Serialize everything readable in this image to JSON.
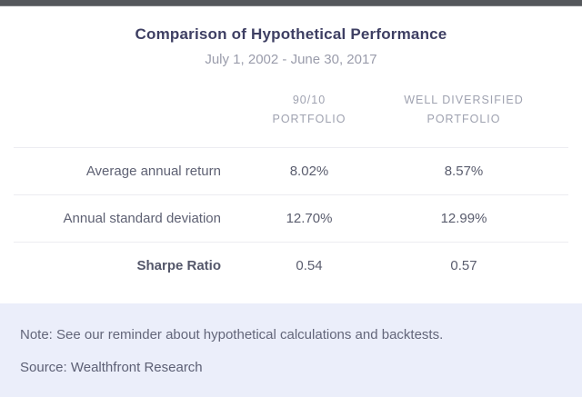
{
  "header": {
    "title": "Comparison of Hypothetical Performance",
    "subtitle": "July 1, 2002 - June 30, 2017"
  },
  "table": {
    "column_headers": [
      {
        "line1": "90/10",
        "line2": "Portfolio"
      },
      {
        "line1": "Well Diversified",
        "line2": "Portfolio"
      }
    ],
    "rows": [
      {
        "label": "Average annual return",
        "value1": "8.02%",
        "value2": "8.57%"
      },
      {
        "label": "Annual standard deviation",
        "value1": "12.70%",
        "value2": "12.99%"
      },
      {
        "label": "Sharpe Ratio",
        "value1": "0.54",
        "value2": "0.57"
      }
    ]
  },
  "footer": {
    "note": "Note: See our reminder about hypothetical calculations and backtests.",
    "source": "Source: Wealthfront Research"
  },
  "colors": {
    "topbar_bg": "#55585c",
    "title_text": "#3e3f63",
    "subtitle_text": "#9a9cab",
    "column_header_text": "#9fa2b0",
    "row_label_text": "#5e6173",
    "value_text": "#5a5d6e",
    "divider": "#ececf1",
    "footer_bg": "#ebeefa",
    "footer_text": "#63667a"
  },
  "chart_data": {
    "type": "table",
    "title": "Comparison of Hypothetical Performance",
    "subtitle": "July 1, 2002 - June 30, 2017",
    "columns": [
      "",
      "90/10 Portfolio",
      "Well Diversified Portfolio"
    ],
    "rows": [
      [
        "Average annual return",
        "8.02%",
        "8.57%"
      ],
      [
        "Annual standard deviation",
        "12.70%",
        "12.99%"
      ],
      [
        "Sharpe Ratio",
        "0.54",
        "0.57"
      ]
    ],
    "metrics": [
      {
        "name": "Average annual return",
        "portfolio_90_10": 8.02,
        "well_diversified": 8.57,
        "unit": "%"
      },
      {
        "name": "Annual standard deviation",
        "portfolio_90_10": 12.7,
        "well_diversified": 12.99,
        "unit": "%"
      },
      {
        "name": "Sharpe Ratio",
        "portfolio_90_10": 0.54,
        "well_diversified": 0.57,
        "unit": ""
      }
    ],
    "source": "Wealthfront Research",
    "note": "See our reminder about hypothetical calculations and backtests."
  }
}
